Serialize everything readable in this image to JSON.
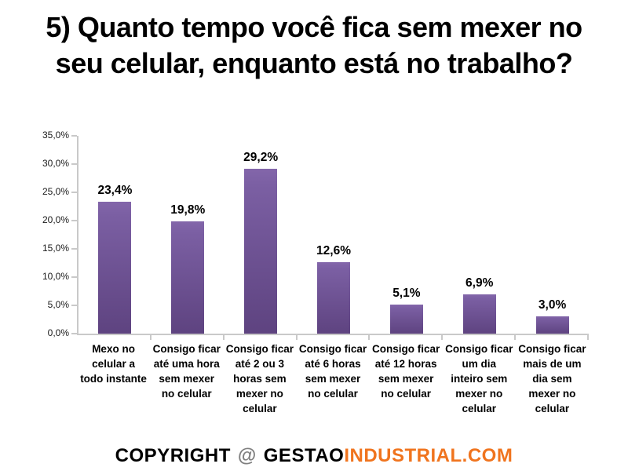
{
  "title": {
    "line1": "5) Quanto tempo você fica sem mexer no",
    "line2": "seu celular, enquanto está no trabalho?"
  },
  "chart_data": {
    "type": "bar",
    "title": "5) Quanto tempo você fica sem mexer no seu celular, enquanto está no trabalho?",
    "categories": [
      "Mexo no celular a todo instante",
      "Consigo ficar até uma hora sem mexer no celular",
      "Consigo ficar até 2 ou 3 horas sem mexer no celular",
      "Consigo ficar até 6 horas sem mexer no celular",
      "Consigo ficar até 12 horas sem mexer no celular",
      "Consigo ficar um dia inteiro sem mexer no celular",
      "Consigo ficar mais de um dia sem mexer no celular"
    ],
    "values": [
      23.4,
      19.8,
      29.2,
      12.6,
      5.1,
      6.9,
      3.0
    ],
    "value_labels": [
      "23,4%",
      "19,8%",
      "29,2%",
      "12,6%",
      "5,1%",
      "6,9%",
      "3,0%"
    ],
    "y_ticks": [
      "35,0%",
      "30,0%",
      "25,0%",
      "20,0%",
      "15,0%",
      "10,0%",
      "5,0%",
      "0,0%"
    ],
    "ylim": [
      0,
      35
    ],
    "xlabel": "",
    "ylabel": "",
    "grid": false,
    "legend": "none",
    "bar_color_top": "#7b5fa3",
    "bar_color_bottom": "#5e4380",
    "axis_color": "#c9c9c9"
  },
  "footer": {
    "copyright": "COPYRIGHT",
    "at": "@",
    "brand_black": "GESTAO",
    "brand_orange": "INDUSTRIAL.COM",
    "orange_color": "#f0741e"
  }
}
